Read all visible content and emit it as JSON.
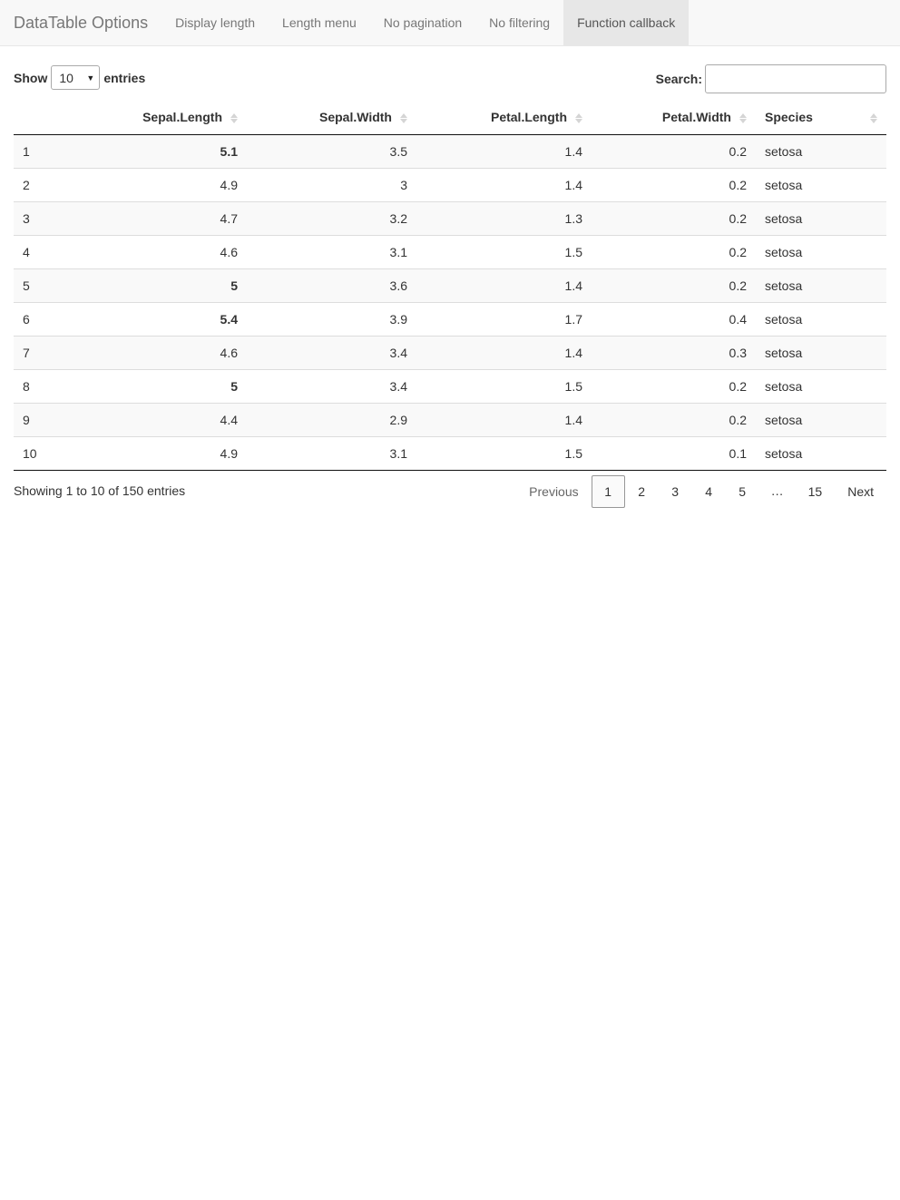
{
  "navbar": {
    "brand": "DataTable Options",
    "items": [
      {
        "label": "Display length",
        "active": false
      },
      {
        "label": "Length menu",
        "active": false
      },
      {
        "label": "No pagination",
        "active": false
      },
      {
        "label": "No filtering",
        "active": false
      },
      {
        "label": "Function callback",
        "active": true
      }
    ]
  },
  "controls": {
    "show_label": "Show",
    "length_value": "10",
    "entries_label": "entries",
    "search_label": "Search:",
    "search_value": ""
  },
  "table": {
    "columns": [
      "",
      "Sepal.Length",
      "Sepal.Width",
      "Petal.Length",
      "Petal.Width",
      "Species"
    ],
    "rows": [
      {
        "id": "1",
        "sl": "5.1",
        "sw": "3.5",
        "pl": "1.4",
        "pw": "0.2",
        "sp": "setosa",
        "bold": true
      },
      {
        "id": "2",
        "sl": "4.9",
        "sw": "3",
        "pl": "1.4",
        "pw": "0.2",
        "sp": "setosa",
        "bold": false
      },
      {
        "id": "3",
        "sl": "4.7",
        "sw": "3.2",
        "pl": "1.3",
        "pw": "0.2",
        "sp": "setosa",
        "bold": false
      },
      {
        "id": "4",
        "sl": "4.6",
        "sw": "3.1",
        "pl": "1.5",
        "pw": "0.2",
        "sp": "setosa",
        "bold": false
      },
      {
        "id": "5",
        "sl": "5",
        "sw": "3.6",
        "pl": "1.4",
        "pw": "0.2",
        "sp": "setosa",
        "bold": true
      },
      {
        "id": "6",
        "sl": "5.4",
        "sw": "3.9",
        "pl": "1.7",
        "pw": "0.4",
        "sp": "setosa",
        "bold": true
      },
      {
        "id": "7",
        "sl": "4.6",
        "sw": "3.4",
        "pl": "1.4",
        "pw": "0.3",
        "sp": "setosa",
        "bold": false
      },
      {
        "id": "8",
        "sl": "5",
        "sw": "3.4",
        "pl": "1.5",
        "pw": "0.2",
        "sp": "setosa",
        "bold": true
      },
      {
        "id": "9",
        "sl": "4.4",
        "sw": "2.9",
        "pl": "1.4",
        "pw": "0.2",
        "sp": "setosa",
        "bold": false
      },
      {
        "id": "10",
        "sl": "4.9",
        "sw": "3.1",
        "pl": "1.5",
        "pw": "0.1",
        "sp": "setosa",
        "bold": false
      }
    ]
  },
  "footer": {
    "info": "Showing 1 to 10 of 150 entries",
    "previous": "Previous",
    "pages": [
      "1",
      "2",
      "3",
      "4",
      "5"
    ],
    "ellipsis": "…",
    "last_page": "15",
    "next": "Next",
    "current_page": "1"
  }
}
